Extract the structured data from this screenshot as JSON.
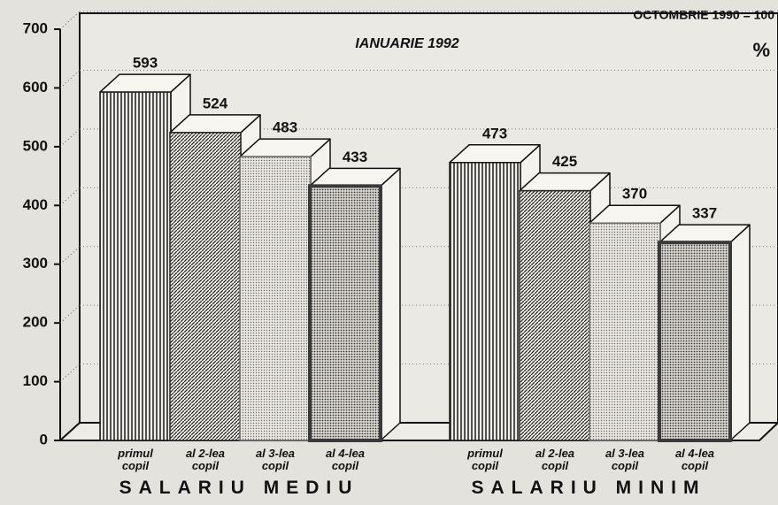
{
  "chart_data": {
    "type": "bar3d",
    "title": "IANUARIE 1992",
    "annotation": "OCTOMBRIE 1990 = 100",
    "unit": "%",
    "categories": [
      "SALARIU MEDIU",
      "SALARIU MINIM"
    ],
    "series": [
      {
        "name": "primul copil",
        "color": "#1a1a1a",
        "values": [
          593,
          473
        ]
      },
      {
        "name": "al 2-lea copil",
        "color": "#2a2a2a",
        "values": [
          524,
          425
        ]
      },
      {
        "name": "al 3-lea copil",
        "color": "#6a6a6a",
        "values": [
          483,
          370
        ]
      },
      {
        "name": "al 4-lea copil",
        "color": "#3a3a3a",
        "values": [
          433,
          337
        ]
      }
    ],
    "ylim": [
      0,
      700
    ],
    "yticks": [
      0,
      100,
      200,
      300,
      400,
      500,
      600,
      700
    ],
    "grid": true
  }
}
